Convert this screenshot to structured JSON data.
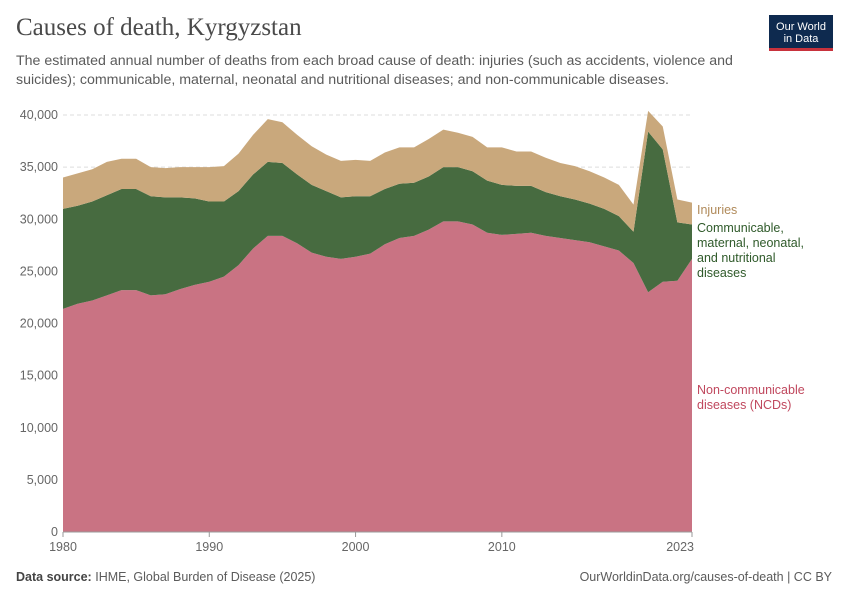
{
  "header": {
    "title": "Causes of death, Kyrgyzstan",
    "subtitle": "The estimated annual number of deaths from each broad cause of death: injuries (such as accidents, violence and suicides); communicable, maternal, neonatal and nutritional diseases; and non-communicable diseases."
  },
  "logo": {
    "line1": "Our World",
    "line2": "in Data"
  },
  "footer": {
    "source_label": "Data source:",
    "source_text": "IHME, Global Burden of Disease (2025)",
    "url": "OurWorldinData.org/causes-of-death | CC BY"
  },
  "colors": {
    "ncd": "#c97383",
    "communicable": "#476b40",
    "injuries": "#c9a87c",
    "ncd_label": "#c0485e",
    "communicable_label": "#2f5a2a",
    "injuries_label": "#b08a5a",
    "grid": "#dddddd",
    "tick": "#666666"
  },
  "chart_data": {
    "type": "area",
    "stacked": true,
    "title": "Causes of death, Kyrgyzstan",
    "xlabel": "",
    "ylabel": "",
    "ylim": [
      0,
      40000
    ],
    "xlim": [
      1980,
      2023
    ],
    "y_ticks": [
      0,
      5000,
      10000,
      15000,
      20000,
      25000,
      30000,
      35000,
      40000
    ],
    "y_tick_labels": [
      "0",
      "5,000",
      "10,000",
      "15,000",
      "20,000",
      "25,000",
      "30,000",
      "35,000",
      "40,000"
    ],
    "x_ticks": [
      1980,
      1990,
      2000,
      2010,
      2023
    ],
    "x_tick_labels": [
      "1980",
      "1990",
      "2000",
      "2010",
      "2023"
    ],
    "x": [
      1980,
      1981,
      1982,
      1983,
      1984,
      1985,
      1986,
      1987,
      1988,
      1989,
      1990,
      1991,
      1992,
      1993,
      1994,
      1995,
      1996,
      1997,
      1998,
      1999,
      2000,
      2001,
      2002,
      2003,
      2004,
      2005,
      2006,
      2007,
      2008,
      2009,
      2010,
      2011,
      2012,
      2013,
      2014,
      2015,
      2016,
      2017,
      2018,
      2019,
      2020,
      2021,
      2022,
      2023
    ],
    "series": [
      {
        "name": "Non-communicable diseases (NCDs)",
        "legend_line1": "Non-communicable",
        "legend_line2": "diseases (NCDs)",
        "values": [
          21400,
          21900,
          22200,
          22700,
          23200,
          23200,
          22700,
          22800,
          23300,
          23700,
          24000,
          24500,
          25600,
          27200,
          28400,
          28400,
          27700,
          26800,
          26400,
          26200,
          26400,
          26700,
          27600,
          28200,
          28400,
          29000,
          29800,
          29800,
          29500,
          28700,
          28500,
          28600,
          28700,
          28400,
          28200,
          28000,
          27800,
          27400,
          27000,
          25800,
          23000,
          24000,
          24100,
          26200
        ]
      },
      {
        "name": "Communicable, maternal, neonatal, and nutritional diseases",
        "legend_line1": "Communicable,",
        "legend_line2": "maternal, neonatal,",
        "legend_line3": "and nutritional",
        "legend_line4": "diseases",
        "values": [
          9600,
          9400,
          9500,
          9600,
          9700,
          9700,
          9500,
          9300,
          8800,
          8300,
          7700,
          7200,
          7100,
          7100,
          7100,
          7000,
          6600,
          6500,
          6300,
          5900,
          5800,
          5500,
          5300,
          5200,
          5100,
          5100,
          5200,
          5200,
          5100,
          5000,
          4800,
          4600,
          4500,
          4200,
          4000,
          3900,
          3700,
          3600,
          3300,
          3000,
          15400,
          12700,
          5600,
          3300
        ]
      },
      {
        "name": "Injuries",
        "legend_line1": "Injuries",
        "values": [
          3000,
          3100,
          3100,
          3200,
          2900,
          2900,
          2800,
          2800,
          2900,
          3000,
          3300,
          3400,
          3600,
          3800,
          4100,
          3900,
          3800,
          3700,
          3500,
          3500,
          3500,
          3400,
          3500,
          3500,
          3400,
          3600,
          3600,
          3300,
          3300,
          3200,
          3600,
          3300,
          3300,
          3300,
          3200,
          3200,
          3100,
          3000,
          3000,
          2600,
          2000,
          2200,
          2200,
          2100
        ]
      }
    ]
  }
}
